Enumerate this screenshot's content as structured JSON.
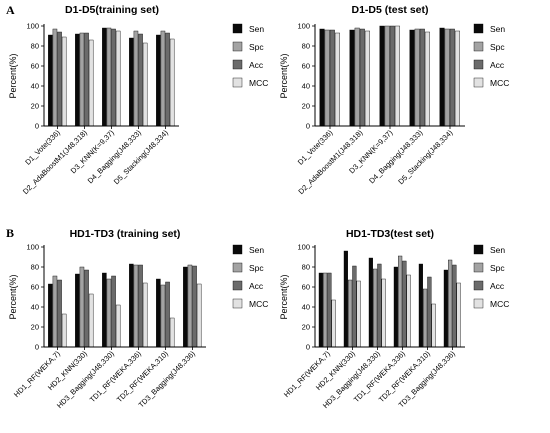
{
  "panel_labels": [
    "A",
    "B"
  ],
  "colors": {
    "Sen": "#0a0a0a",
    "Spc": "#a3a3a3",
    "Acc": "#6b6b6b",
    "MCC": "#e2e2e2"
  },
  "chart_data": [
    {
      "type": "bar",
      "title": "D1-D5(training set)",
      "ylabel": "Percent(%)",
      "ylim": [
        0,
        100
      ],
      "yticks": [
        0,
        20,
        40,
        60,
        80,
        100
      ],
      "grid": false,
      "legend_position": "right",
      "categories": [
        "D1_Vote(336)",
        "D2_AdaBoostM1(J48,318)",
        "D3_KNN(K=9,37)",
        "D4_Bagging(J48,333)",
        "D5_Stacking(J48,334)"
      ],
      "series": [
        {
          "name": "Sen",
          "values": [
            91,
            92,
            98,
            88,
            91
          ]
        },
        {
          "name": "Spc",
          "values": [
            97,
            93,
            98,
            95,
            95
          ]
        },
        {
          "name": "Acc",
          "values": [
            94,
            93,
            97,
            92,
            93
          ]
        },
        {
          "name": "MCC",
          "values": [
            89,
            86,
            95,
            83,
            87
          ]
        }
      ]
    },
    {
      "type": "bar",
      "title": "D1-D5 (test set)",
      "ylabel": "Percent(%)",
      "ylim": [
        0,
        100
      ],
      "yticks": [
        0,
        20,
        40,
        60,
        80,
        100
      ],
      "grid": false,
      "legend_position": "right",
      "categories": [
        "D1_Vote(336)",
        "D2_AdaBoostM1(J48,318)",
        "D3_KNN(K=9,37)",
        "D4_Bagging(J48,333)",
        "D5_Stacking(J48,334)"
      ],
      "series": [
        {
          "name": "Sen",
          "values": [
            97,
            96,
            100,
            96,
            98
          ]
        },
        {
          "name": "Spc",
          "values": [
            96,
            98,
            100,
            97,
            97
          ]
        },
        {
          "name": "Acc",
          "values": [
            96,
            97,
            100,
            97,
            97
          ]
        },
        {
          "name": "MCC",
          "values": [
            93,
            95,
            100,
            94,
            95
          ]
        }
      ]
    },
    {
      "type": "bar",
      "title": "HD1-TD3 (training set)",
      "ylabel": "Percent(%)",
      "ylim": [
        0,
        100
      ],
      "yticks": [
        0,
        20,
        40,
        60,
        80,
        100
      ],
      "grid": false,
      "legend_position": "right",
      "categories": [
        "HD1_RF(WEKA,7)",
        "HD2_KNN(330)",
        "HD3_Bagging(J48,330)",
        "TD1_RF(WEKA,336)",
        "TD2_RF(WEKA,310)",
        "TD3_Bagging(J48,336)"
      ],
      "series": [
        {
          "name": "Sen",
          "values": [
            63,
            73,
            74,
            83,
            68,
            80
          ]
        },
        {
          "name": "Spc",
          "values": [
            71,
            80,
            68,
            82,
            62,
            82
          ]
        },
        {
          "name": "Acc",
          "values": [
            67,
            77,
            71,
            82,
            65,
            81
          ]
        },
        {
          "name": "MCC",
          "values": [
            33,
            53,
            42,
            64,
            29,
            63
          ]
        }
      ]
    },
    {
      "type": "bar",
      "title": "HD1-TD3(test set)",
      "ylabel": "Percent(%)",
      "ylim": [
        0,
        100
      ],
      "yticks": [
        0,
        20,
        40,
        60,
        80,
        100
      ],
      "grid": false,
      "legend_position": "right",
      "categories": [
        "HD1_RF(WEKA,7)",
        "HD2_KNN(330)",
        "HD3_Bagging(J48,330)",
        "TD1_RF(WEKA,336)",
        "TD2_RF(WEKA,310)",
        "TD3_Bagging(J48,336)"
      ],
      "series": [
        {
          "name": "Sen",
          "values": [
            74,
            96,
            89,
            80,
            83,
            77
          ]
        },
        {
          "name": "Spc",
          "values": [
            74,
            67,
            78,
            91,
            58,
            87
          ]
        },
        {
          "name": "Acc",
          "values": [
            74,
            81,
            83,
            86,
            70,
            82
          ]
        },
        {
          "name": "MCC",
          "values": [
            47,
            66,
            68,
            72,
            43,
            64
          ]
        }
      ]
    }
  ]
}
